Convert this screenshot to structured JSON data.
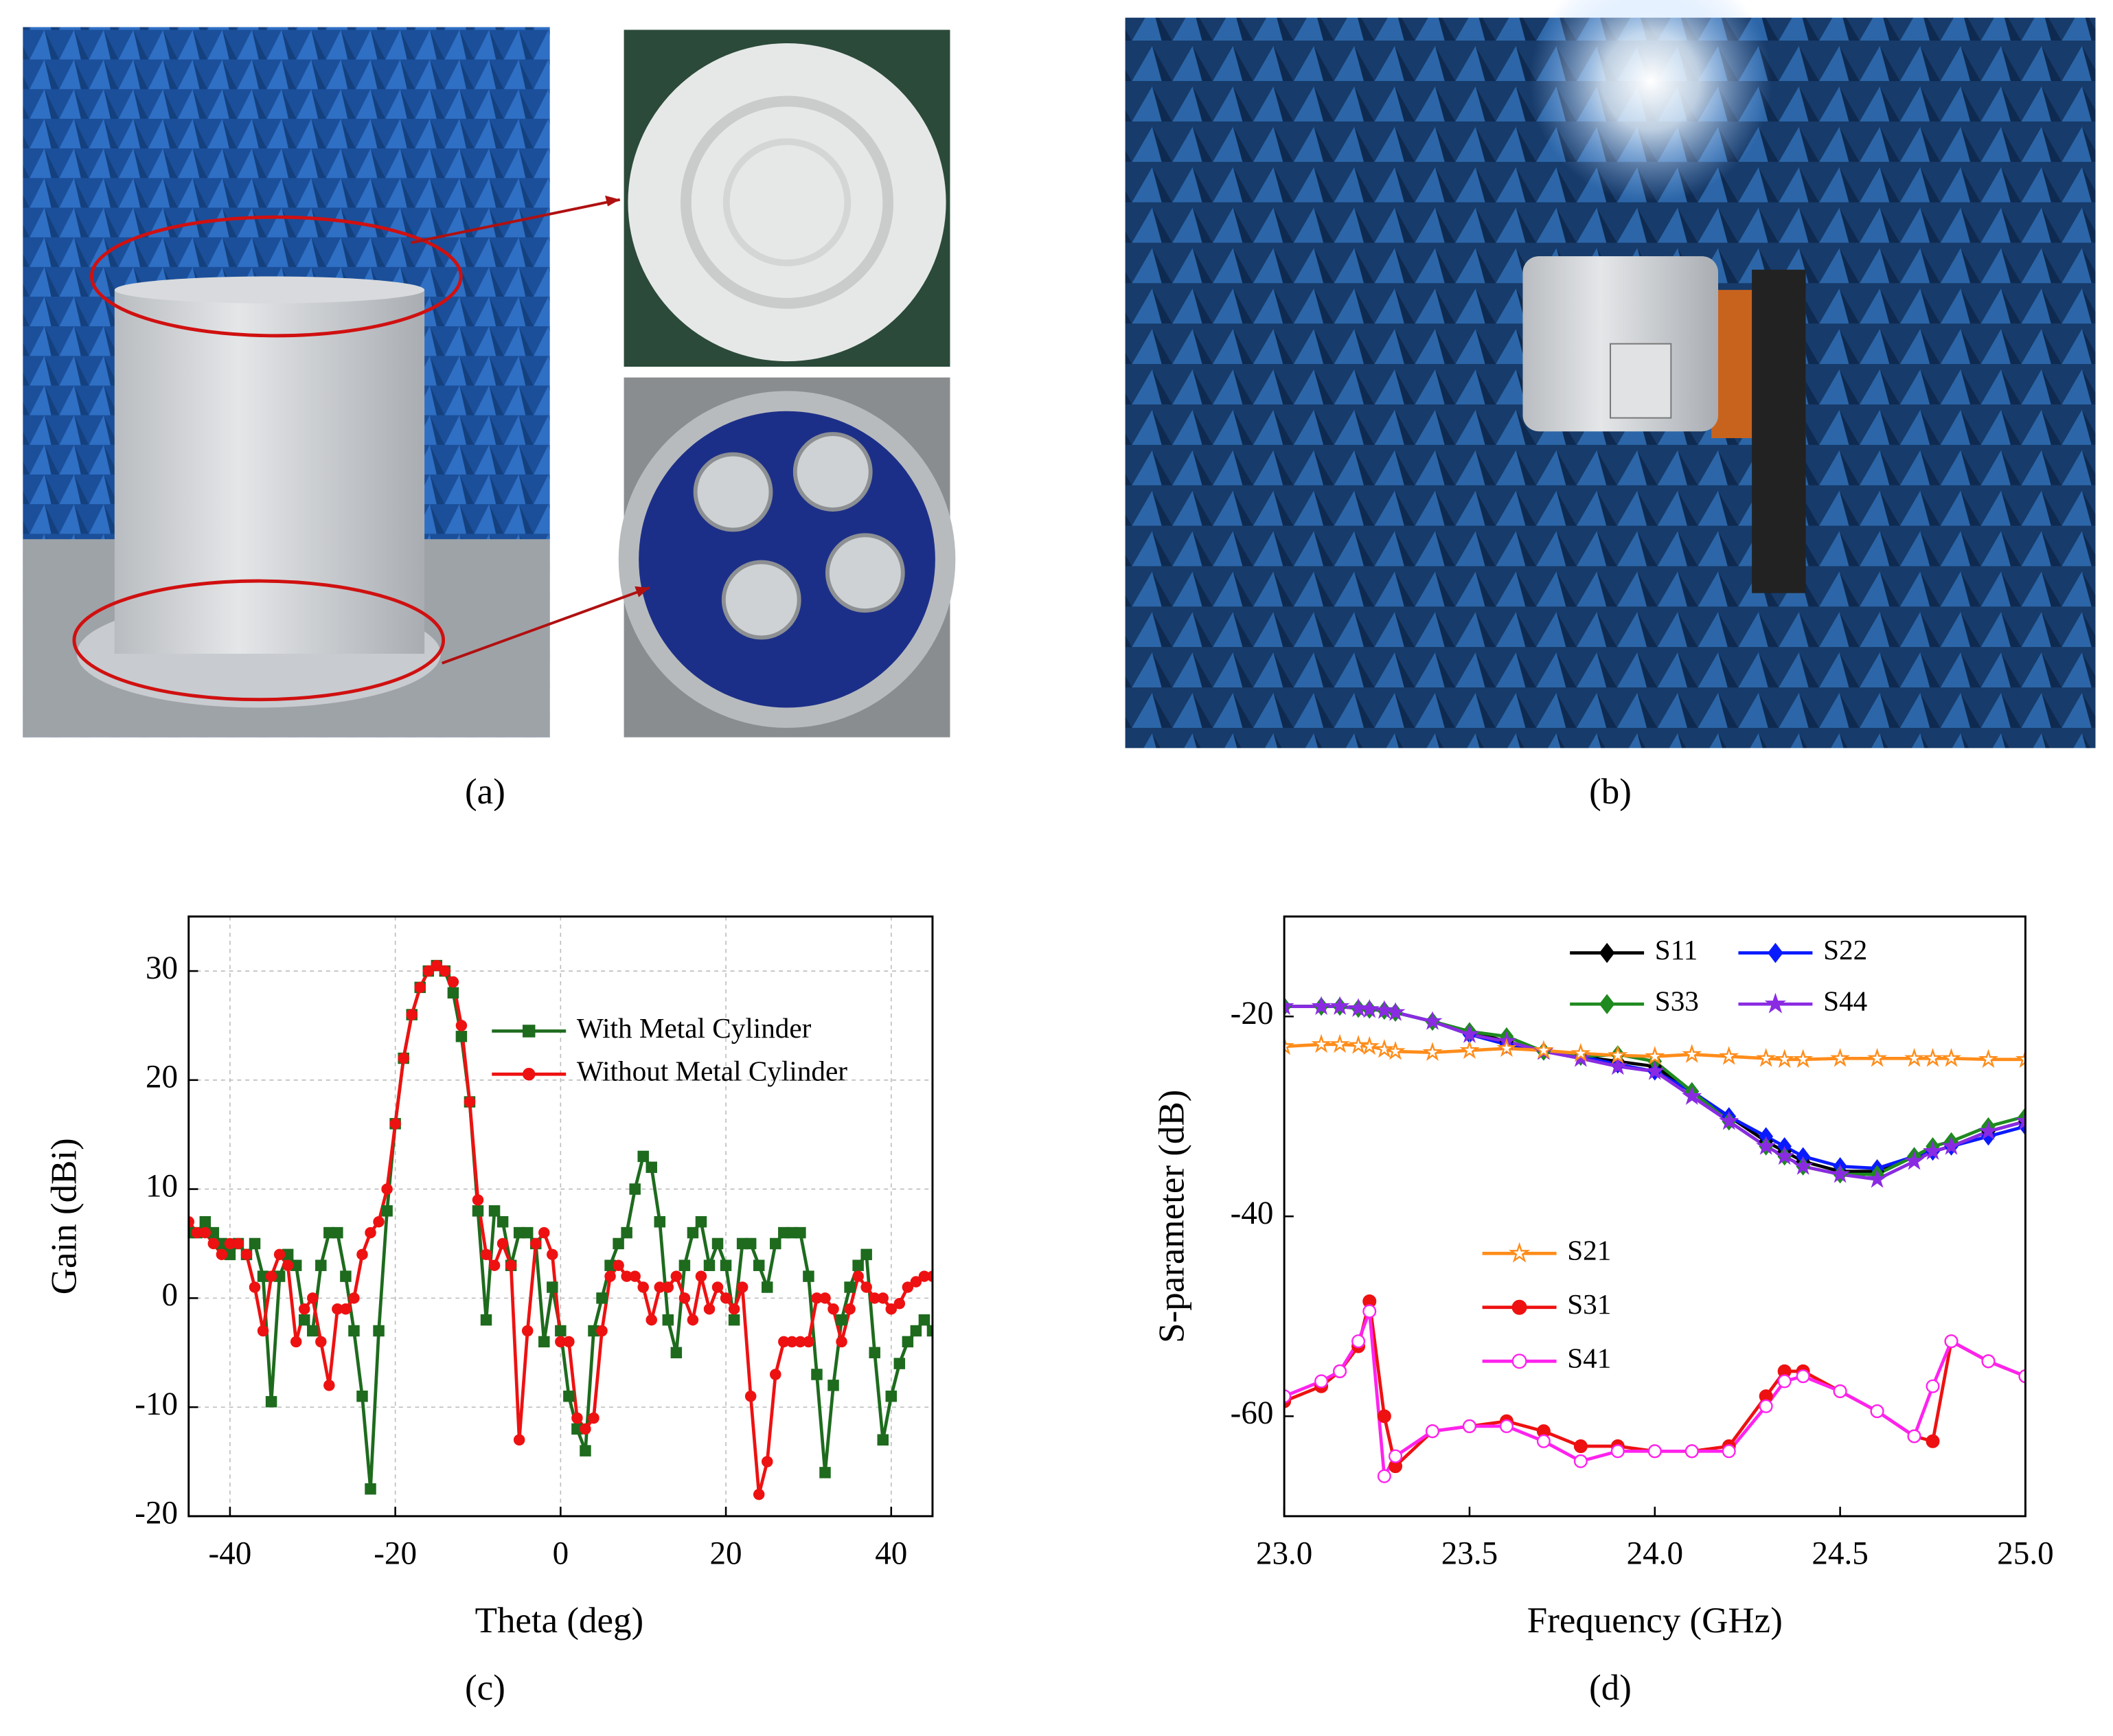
{
  "panel_labels": [
    "(a)",
    "(b)",
    "(c)",
    "(d)"
  ],
  "chart_data": [
    {
      "type": "line",
      "xlabel": "Theta (deg)",
      "ylabel": "Gain (dBi)",
      "grid": true,
      "xlim": [
        -45,
        45
      ],
      "ylim": [
        -20,
        35
      ],
      "xticks": [
        -40,
        -20,
        0,
        20,
        40
      ],
      "yticks": [
        -20,
        -10,
        0,
        10,
        20,
        30
      ],
      "x": [
        -45,
        -44,
        -43,
        -42,
        -41,
        -40,
        -39,
        -38,
        -37,
        -36,
        -35,
        -34,
        -33,
        -32,
        -31,
        -30,
        -29,
        -28,
        -27,
        -26,
        -25,
        -24,
        -23,
        -22,
        -21,
        -20,
        -19,
        -18,
        -17,
        -16,
        -15,
        -14,
        -13,
        -12,
        -11,
        -10,
        -9,
        -8,
        -7,
        -6,
        -5,
        -4,
        -3,
        -2,
        -1,
        0,
        1,
        2,
        3,
        4,
        5,
        6,
        7,
        8,
        9,
        10,
        11,
        12,
        13,
        14,
        15,
        16,
        17,
        18,
        19,
        20,
        21,
        22,
        23,
        24,
        25,
        26,
        27,
        28,
        29,
        30,
        31,
        32,
        33,
        34,
        35,
        36,
        37,
        38,
        39,
        40,
        41,
        42,
        43,
        44,
        45
      ],
      "series": [
        {
          "name": "With Metal Cylinder",
          "color": "#1e6b1e",
          "marker": "square",
          "values": [
            6,
            6,
            7,
            6,
            5,
            4,
            5,
            4,
            5,
            2,
            -9.5,
            2,
            4,
            3,
            -2,
            -3,
            3,
            6,
            6,
            2,
            -3,
            -9,
            -17.5,
            -3,
            8,
            16,
            22,
            26,
            28.5,
            30,
            30.5,
            30,
            28,
            24,
            18,
            8,
            -2,
            8,
            7,
            3,
            6,
            6,
            5,
            -4,
            1,
            -3,
            -9,
            -12,
            -14,
            -3,
            0,
            3,
            5,
            6,
            10,
            13,
            12,
            7,
            -2,
            -5,
            3,
            6,
            7,
            3,
            5,
            3,
            -2,
            5,
            5,
            3,
            1,
            5,
            6,
            6,
            6,
            2,
            -7,
            -16,
            -8,
            -2,
            1,
            3,
            4,
            -5,
            -13,
            -9,
            -6,
            -4,
            -3,
            -2,
            -3
          ]
        },
        {
          "name": "Without Metal Cylinder",
          "color": "#ee1111",
          "marker": "circle",
          "values": [
            7,
            6,
            6,
            5,
            4,
            5,
            5,
            4,
            1,
            -3,
            2,
            4,
            3,
            -4,
            -1,
            0,
            -4,
            -8,
            -1,
            -1,
            0,
            4,
            6,
            7,
            10,
            16,
            22,
            26,
            28.5,
            30,
            30.5,
            30,
            29,
            25,
            18,
            9,
            4,
            3,
            5,
            3,
            -13,
            -3,
            5,
            6,
            4,
            -4,
            -4,
            -11,
            -12,
            -11,
            -3,
            2,
            3,
            2,
            2,
            1,
            -2,
            1,
            1,
            2,
            0,
            -2,
            2,
            -1,
            1,
            0,
            -1,
            1,
            -9,
            -18,
            -15,
            -7,
            -4,
            -4,
            -4,
            -4,
            0,
            0,
            -1,
            -4,
            -1,
            2,
            1,
            0,
            0,
            -1,
            -0.5,
            1,
            1.5,
            2,
            2
          ]
        }
      ]
    },
    {
      "type": "line",
      "xlabel": "Frequency (GHz)",
      "ylabel": "S-parameter (dB)",
      "grid": false,
      "xlim": [
        23,
        25
      ],
      "ylim": [
        -70,
        -10
      ],
      "xticks": [
        {
          "value": 23,
          "label": "23.0"
        },
        23.5,
        {
          "value": 24,
          "label": "24.0"
        },
        24.5,
        {
          "value": 25,
          "label": "25.0"
        }
      ],
      "yticks": [
        -60,
        -40,
        -20
      ],
      "x": [
        23.0,
        23.1,
        23.15,
        23.2,
        23.23,
        23.27,
        23.3,
        23.4,
        23.5,
        23.6,
        23.7,
        23.8,
        23.9,
        24.0,
        24.1,
        24.2,
        24.3,
        24.35,
        24.4,
        24.5,
        24.6,
        24.7,
        24.75,
        24.8,
        24.9,
        25.0
      ],
      "series": [
        {
          "name": "S11",
          "color": "#000000",
          "marker": "diamond",
          "values": [
            -19,
            -19,
            -19,
            -19.2,
            -19.3,
            -19.4,
            -19.6,
            -20.5,
            -21.5,
            -22.5,
            -23.5,
            -24,
            -24.5,
            -25,
            -27.5,
            -30,
            -32.5,
            -33.5,
            -34.5,
            -35.5,
            -35.5,
            -34,
            -33.5,
            -33,
            -31.5,
            -30.5
          ]
        },
        {
          "name": "S22",
          "color": "#0a1aff",
          "marker": "diamond",
          "values": [
            -19,
            -19,
            -19,
            -19.2,
            -19.3,
            -19.4,
            -19.6,
            -20.5,
            -21.8,
            -22.8,
            -23.5,
            -24,
            -24.8,
            -25.5,
            -27.5,
            -30,
            -32,
            -33,
            -34,
            -35,
            -35.2,
            -34,
            -33.5,
            -33,
            -32,
            -31
          ]
        },
        {
          "name": "S33",
          "color": "#1f8a1f",
          "marker": "diamond",
          "values": [
            -19,
            -19,
            -19,
            -19.2,
            -19.3,
            -19.4,
            -19.6,
            -20.5,
            -21.5,
            -22,
            -23.5,
            -24,
            -23.8,
            -24.5,
            -27.5,
            -30.5,
            -33,
            -34,
            -35,
            -35.8,
            -35.8,
            -34,
            -33,
            -32.5,
            -31,
            -30
          ]
        },
        {
          "name": "S44",
          "color": "#8a2be2",
          "marker": "star",
          "values": [
            -19,
            -19,
            -19,
            -19.2,
            -19.3,
            -19.4,
            -19.6,
            -20.5,
            -21.8,
            -22.5,
            -23.5,
            -24.2,
            -25,
            -25.5,
            -28,
            -30.5,
            -33,
            -34,
            -35,
            -35.8,
            -36.3,
            -34.5,
            -33.5,
            -33,
            -31.5,
            -30.5
          ]
        },
        {
          "name": "S21",
          "color": "#ff8c1a",
          "marker": "star-open",
          "values": [
            -23,
            -22.8,
            -22.8,
            -22.9,
            -23,
            -23.3,
            -23.5,
            -23.6,
            -23.4,
            -23.2,
            -23.4,
            -23.7,
            -23.9,
            -24,
            -23.8,
            -24,
            -24.2,
            -24.3,
            -24.3,
            -24.2,
            -24.2,
            -24.2,
            -24.2,
            -24.2,
            -24.3,
            -24.3
          ]
        },
        {
          "name": "S31",
          "color": "#ee1111",
          "marker": "circle",
          "values": [
            -58.5,
            -57,
            -55.5,
            -53,
            -48.5,
            -60,
            -65,
            -61.5,
            -61,
            -60.5,
            -61.5,
            -63,
            -63,
            -63.5,
            -63.5,
            -63,
            -58,
            -55.5,
            -55.5,
            -57.5,
            -59.5,
            -62,
            -62.5,
            -52.5,
            -54.5,
            -56
          ]
        },
        {
          "name": "S41",
          "color": "#ff22ee",
          "marker": "circle-open",
          "values": [
            -58,
            -56.5,
            -55.5,
            -52.5,
            -49.5,
            -66,
            -64,
            -61.5,
            -61,
            -61,
            -62.5,
            -64.5,
            -63.5,
            -63.5,
            -63.5,
            -63.5,
            -59,
            -56.5,
            -56,
            -57.5,
            -59.5,
            -62,
            -57,
            -52.5,
            -54.5,
            -56
          ]
        }
      ]
    }
  ]
}
